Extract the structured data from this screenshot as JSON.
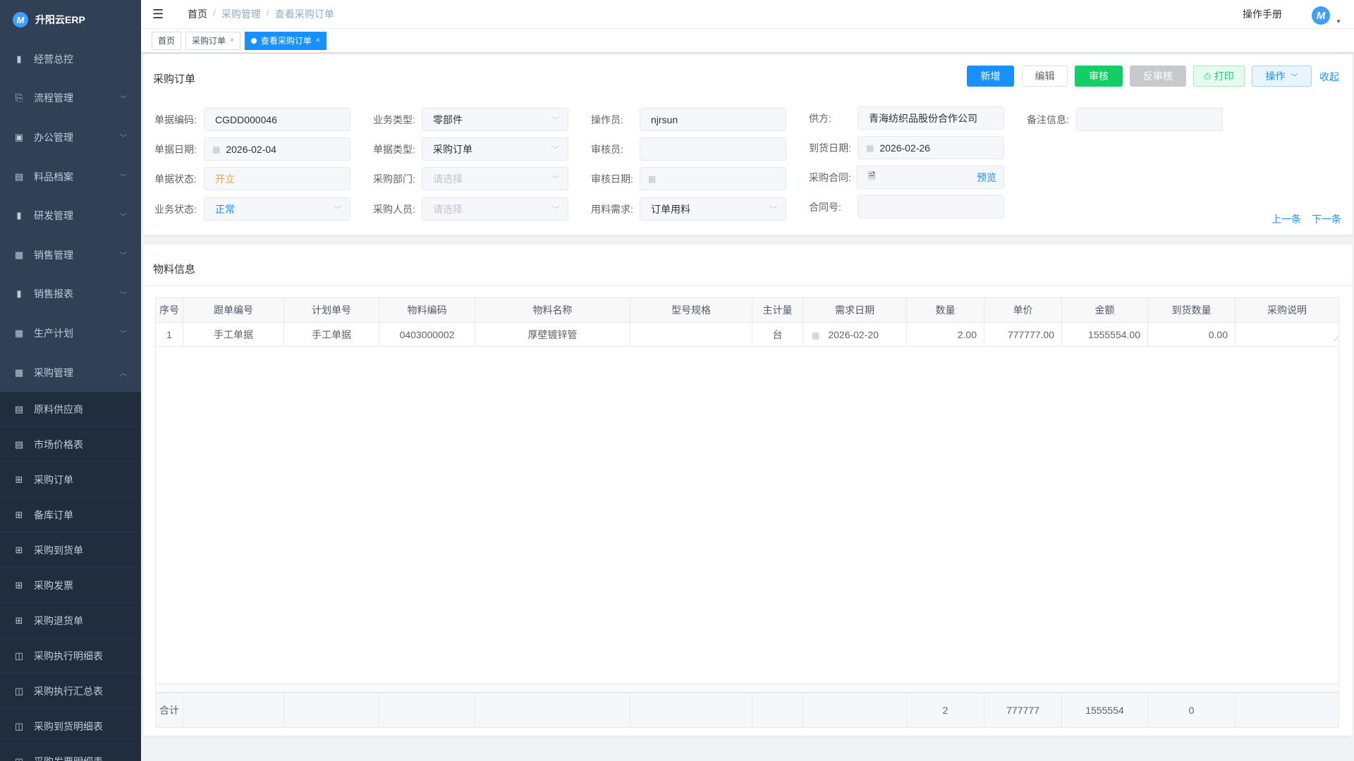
{
  "app": {
    "name": "升阳云ERP",
    "logo_letter": "M"
  },
  "sidebar": {
    "items": [
      {
        "label": "经营总控",
        "icon": "bar-chart-icon",
        "chevron": ""
      },
      {
        "label": "流程管理",
        "icon": "flow-icon",
        "chevron": "﹀"
      },
      {
        "label": "办公管理",
        "icon": "office-icon",
        "chevron": "﹀"
      },
      {
        "label": "料品档案",
        "icon": "archive-icon",
        "chevron": "﹀"
      },
      {
        "label": "研发管理",
        "icon": "rd-icon",
        "chevron": "﹀"
      },
      {
        "label": "销售管理",
        "icon": "sales-icon",
        "chevron": "﹀"
      },
      {
        "label": "销售报表",
        "icon": "bar-chart-icon",
        "chevron": "﹀"
      },
      {
        "label": "生产计划",
        "icon": "plan-icon",
        "chevron": "﹀"
      },
      {
        "label": "采购管理",
        "icon": "purchase-icon",
        "chevron": "︿"
      }
    ],
    "submenu": [
      {
        "label": "原料供应商",
        "icon": "document-edit-icon"
      },
      {
        "label": "市场价格表",
        "icon": "document-edit-icon"
      },
      {
        "label": "采购订单",
        "icon": "table-icon"
      },
      {
        "label": "备库订单",
        "icon": "table-icon"
      },
      {
        "label": "采购到货单",
        "icon": "table-icon"
      },
      {
        "label": "采购发票",
        "icon": "table-icon"
      },
      {
        "label": "采购退货单",
        "icon": "table-icon"
      },
      {
        "label": "采购执行明细表",
        "icon": "book-icon"
      },
      {
        "label": "采购执行汇总表",
        "icon": "book-icon"
      },
      {
        "label": "采购到货明细表",
        "icon": "book-icon"
      },
      {
        "label": "采购发票明细表",
        "icon": "book-icon"
      }
    ]
  },
  "header": {
    "breadcrumb": [
      "首页",
      "采购管理",
      "查看采购订单"
    ],
    "manual": "操作手册"
  },
  "tabs": [
    {
      "label": "首页"
    },
    {
      "label": "采购订单",
      "close": "×"
    },
    {
      "label": "查看采购订单",
      "close": "×",
      "active": true
    }
  ],
  "order": {
    "title": "采购订单",
    "buttons": {
      "add": "新增",
      "edit": "编辑",
      "approve": "审核",
      "unapprove": "反审核",
      "print": "打印",
      "actions": "操作",
      "collapse": "收起"
    },
    "fields": {
      "doc_code": {
        "label": "单据编码:",
        "value": "CGDD000046"
      },
      "doc_date": {
        "label": "单据日期:",
        "value": "2026-02-04"
      },
      "doc_status": {
        "label": "单据状态:",
        "value": "开立"
      },
      "biz_status": {
        "label": "业务状态:",
        "value": "正常"
      },
      "biz_type": {
        "label": "业务类型:",
        "value": "零部件"
      },
      "doc_type": {
        "label": "单据类型:",
        "value": "采购订单"
      },
      "dept": {
        "label": "采购部门:",
        "placeholder": "请选择"
      },
      "buyer": {
        "label": "采购人员:",
        "placeholder": "请选择"
      },
      "operator": {
        "label": "操作员:",
        "value": "njrsun"
      },
      "auditor": {
        "label": "审核员:",
        "value": ""
      },
      "audit_date": {
        "label": "审核日期:",
        "value": ""
      },
      "material_need": {
        "label": "用料需求:",
        "value": "订单用料"
      },
      "supplier": {
        "label": "供方:",
        "value": "青海纺织品股份合作公司"
      },
      "arrival_date": {
        "label": "到货日期:",
        "value": "2026-02-26"
      },
      "contract": {
        "label": "采购合同:",
        "preview": "预览"
      },
      "contract_no": {
        "label": "合同号:",
        "value": ""
      },
      "remark": {
        "label": "备注信息:",
        "value": ""
      }
    },
    "prev": "上一条",
    "next": "下一条",
    "colors": {
      "primary": "#1890ff",
      "success": "#13ce66",
      "disabled": "#c8c9cc",
      "warning": "#e6a23c"
    }
  },
  "materials": {
    "title": "物料信息",
    "columns": [
      "序号",
      "跟单编号",
      "计划单号",
      "物料编码",
      "物料名称",
      "型号规格",
      "主计量",
      "需求日期",
      "数量",
      "单价",
      "金额",
      "到货数量",
      "采购说明"
    ],
    "rows": [
      [
        "1",
        "手工单据",
        "手工单据",
        "0403000002",
        "厚壁镀锌管",
        "",
        "台",
        "2026-02-20",
        "2.00",
        "777777.00",
        "1555554.00",
        "0.00",
        ""
      ]
    ],
    "footer": [
      "合计",
      "",
      "",
      "",
      "",
      "",
      "",
      "",
      "2",
      "777777",
      "1555554",
      "0",
      ""
    ]
  }
}
